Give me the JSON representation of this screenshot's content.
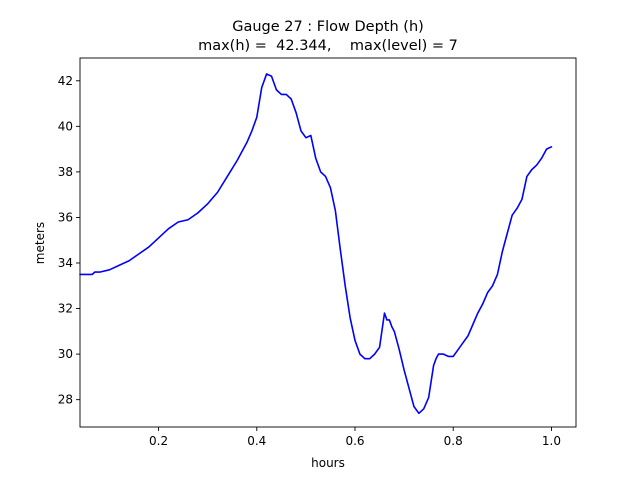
{
  "chart_data": {
    "type": "line",
    "title": "Gauge 27 : Flow Depth (h)",
    "subtitle": "max(h) =  42.344,    max(level) = 7",
    "xlabel": "hours",
    "ylabel": "meters",
    "xlim": [
      0.04,
      1.05
    ],
    "ylim": [
      26.8,
      43.0
    ],
    "xticks": [
      0.2,
      0.4,
      0.6,
      0.8,
      1.0
    ],
    "xtick_labels": [
      "0.2",
      "0.4",
      "0.6",
      "0.8",
      "1.0"
    ],
    "yticks": [
      28,
      30,
      32,
      34,
      36,
      38,
      40,
      42
    ],
    "ytick_labels": [
      "28",
      "30",
      "32",
      "34",
      "36",
      "38",
      "40",
      "42"
    ],
    "grid": false,
    "line_color": "#0000ff",
    "series": [
      {
        "x": [
          0.04,
          0.055,
          0.065,
          0.07,
          0.08,
          0.1,
          0.12,
          0.14,
          0.16,
          0.18,
          0.2,
          0.22,
          0.24,
          0.26,
          0.28,
          0.3,
          0.32,
          0.34,
          0.36,
          0.38,
          0.39,
          0.4,
          0.41,
          0.42,
          0.43,
          0.44,
          0.45,
          0.46,
          0.47,
          0.48,
          0.49,
          0.5,
          0.51,
          0.52,
          0.53,
          0.54,
          0.55,
          0.56,
          0.57,
          0.58,
          0.59,
          0.6,
          0.61,
          0.62,
          0.63,
          0.64,
          0.65,
          0.66,
          0.665,
          0.67,
          0.675,
          0.68,
          0.69,
          0.7,
          0.71,
          0.72,
          0.73,
          0.74,
          0.75,
          0.76,
          0.765,
          0.77,
          0.78,
          0.79,
          0.8,
          0.81,
          0.82,
          0.83,
          0.84,
          0.85,
          0.86,
          0.87,
          0.88,
          0.89,
          0.9,
          0.91,
          0.92,
          0.93,
          0.94,
          0.95,
          0.96,
          0.97,
          0.98,
          0.99,
          1.0
        ],
        "y": [
          33.5,
          33.5,
          33.5,
          33.6,
          33.6,
          33.7,
          33.9,
          34.1,
          34.4,
          34.7,
          35.1,
          35.5,
          35.8,
          35.9,
          36.2,
          36.6,
          37.1,
          37.8,
          38.5,
          39.3,
          39.8,
          40.4,
          41.7,
          42.3,
          42.2,
          41.6,
          41.4,
          41.4,
          41.2,
          40.6,
          39.8,
          39.5,
          39.6,
          38.6,
          38.0,
          37.8,
          37.3,
          36.3,
          34.6,
          33.0,
          31.6,
          30.6,
          30.0,
          29.8,
          29.8,
          30.0,
          30.3,
          31.8,
          31.5,
          31.5,
          31.2,
          31.0,
          30.2,
          29.3,
          28.5,
          27.7,
          27.4,
          27.6,
          28.1,
          29.5,
          29.8,
          30.0,
          30.0,
          29.9,
          29.9,
          30.2,
          30.5,
          30.8,
          31.3,
          31.8,
          32.2,
          32.7,
          33.0,
          33.5,
          34.5,
          35.3,
          36.1,
          36.4,
          36.8,
          37.8,
          38.1,
          38.3,
          38.6,
          39.0,
          39.1
        ]
      }
    ]
  }
}
